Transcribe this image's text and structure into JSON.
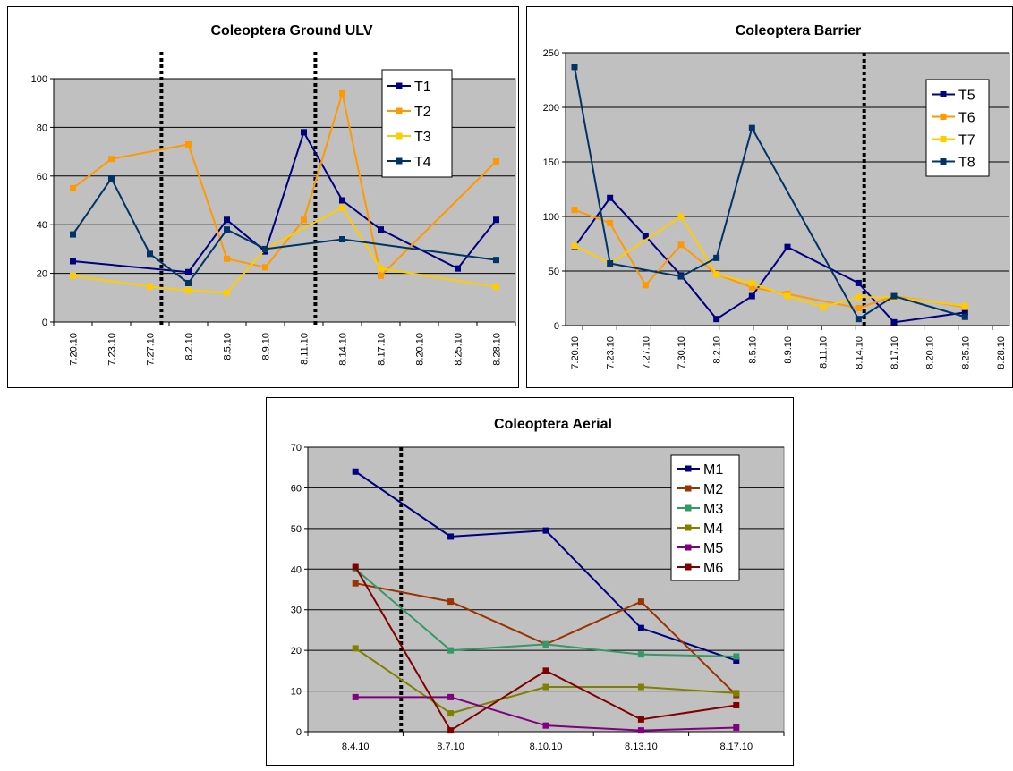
{
  "chart_data": [
    {
      "type": "line",
      "title": "Coleoptera Ground ULV",
      "ylim": [
        0,
        100
      ],
      "yticks": [
        0,
        20,
        40,
        60,
        80,
        100
      ],
      "xlim": [
        0,
        12
      ],
      "categories": [
        "7.20.10",
        "7.23.10",
        "7.27.10",
        "8.2.10",
        "8.5.10",
        "8.9.10",
        "8.11.10",
        "8.14.10",
        "8.17.10",
        "8.20.10",
        "8.25.10",
        "8.28.10"
      ],
      "treatment_lines": [
        2.8,
        6.8
      ],
      "grid": true,
      "legend_position": "top-right",
      "series": [
        {
          "name": "T1",
          "color": "#000080",
          "points": [
            [
              0.5,
              25
            ],
            [
              3.5,
              20.5
            ],
            [
              4.5,
              42
            ],
            [
              5.5,
              29
            ],
            [
              6.5,
              78
            ],
            [
              7.5,
              50
            ],
            [
              8.5,
              38
            ],
            [
              10.5,
              22
            ],
            [
              11.5,
              42
            ]
          ]
        },
        {
          "name": "T2",
          "color": "#FF9900",
          "points": [
            [
              0.5,
              55
            ],
            [
              1.5,
              67
            ],
            [
              3.5,
              73
            ],
            [
              4.5,
              26
            ],
            [
              5.5,
              22.5
            ],
            [
              6.5,
              42
            ],
            [
              7.5,
              94
            ],
            [
              8.5,
              19
            ],
            [
              11.5,
              66
            ]
          ]
        },
        {
          "name": "T3",
          "color": "#FFCC00",
          "points": [
            [
              0.5,
              19
            ],
            [
              2.5,
              14.5
            ],
            [
              3.5,
              13
            ],
            [
              4.5,
              12
            ],
            [
              5.5,
              30
            ],
            [
              7.5,
              47
            ],
            [
              8.5,
              22
            ],
            [
              11.5,
              14.5
            ]
          ]
        },
        {
          "name": "T4",
          "color": "#003366",
          "points": [
            [
              0.5,
              36
            ],
            [
              1.5,
              59
            ],
            [
              2.5,
              28
            ],
            [
              3.5,
              16
            ],
            [
              4.5,
              38
            ],
            [
              5.5,
              30
            ],
            [
              7.5,
              34
            ],
            [
              11.5,
              25.5
            ]
          ]
        }
      ]
    },
    {
      "type": "line",
      "title": "Coleoptera Barrier",
      "ylim": [
        0,
        250
      ],
      "yticks": [
        0,
        50,
        100,
        150,
        200,
        250
      ],
      "xlim": [
        0,
        11
      ],
      "categories": [
        "7.20.10",
        "7.23.10",
        "7.27.10",
        "7.30.10",
        "8.2.10",
        "8.5.10",
        "8.9.10",
        "8.11.10",
        "8.14.10",
        "8.17.10",
        "8.20.10",
        "8.25.10",
        "8.28.10"
      ],
      "treatment_lines": [
        7.4
      ],
      "grid": true,
      "legend_position": "top-right",
      "series": [
        {
          "name": "T5",
          "color": "#000080",
          "points": [
            [
              0,
              72
            ],
            [
              1,
              117
            ],
            [
              2,
              82
            ],
            [
              3,
              46
            ],
            [
              4,
              6
            ],
            [
              5,
              27
            ],
            [
              6,
              72
            ],
            [
              8,
              39
            ],
            [
              9,
              3
            ],
            [
              11,
              12
            ]
          ]
        },
        {
          "name": "T6",
          "color": "#FF9900",
          "points": [
            [
              0,
              106
            ],
            [
              1,
              94
            ],
            [
              2,
              37
            ],
            [
              3,
              74
            ],
            [
              4,
              47
            ],
            [
              5,
              35
            ],
            [
              6,
              29
            ],
            [
              8,
              16
            ],
            [
              9,
              27
            ],
            [
              11,
              17
            ]
          ]
        },
        {
          "name": "T7",
          "color": "#FFCC00",
          "points": [
            [
              0,
              73
            ],
            [
              1,
              57
            ],
            [
              3,
              100
            ],
            [
              4,
              47
            ],
            [
              5,
              39
            ],
            [
              6,
              27
            ],
            [
              7,
              17
            ],
            [
              8,
              26
            ],
            [
              9,
              26
            ],
            [
              11,
              18
            ]
          ]
        },
        {
          "name": "T8",
          "color": "#003366",
          "points": [
            [
              0,
              237
            ],
            [
              1,
              57
            ],
            [
              3,
              45
            ],
            [
              4,
              62
            ],
            [
              5,
              181
            ],
            [
              8,
              6
            ],
            [
              9,
              27
            ],
            [
              11,
              8
            ]
          ]
        }
      ]
    },
    {
      "type": "line",
      "title": "Coleoptera Aerial",
      "ylim": [
        0,
        70
      ],
      "yticks": [
        0,
        10,
        20,
        30,
        40,
        50,
        60,
        70
      ],
      "xlim": [
        0,
        5
      ],
      "categories": [
        "8.4.10",
        "8.7.10",
        "8.10.10",
        "8.13.10",
        "8.17.10"
      ],
      "treatment_lines": [
        0.98
      ],
      "grid": true,
      "legend_position": "top-right",
      "series": [
        {
          "name": "M1",
          "color": "#000080",
          "points": [
            [
              0.5,
              64
            ],
            [
              1.5,
              48
            ],
            [
              2.5,
              49.5
            ],
            [
              3.5,
              25.5
            ],
            [
              4.5,
              17.5
            ]
          ]
        },
        {
          "name": "M2",
          "color": "#993300",
          "points": [
            [
              0.5,
              36.5
            ],
            [
              1.5,
              32
            ],
            [
              2.5,
              21.5
            ],
            [
              3.5,
              32
            ],
            [
              4.5,
              9
            ]
          ]
        },
        {
          "name": "M3",
          "color": "#339966",
          "points": [
            [
              0.5,
              40
            ],
            [
              1.5,
              20
            ],
            [
              2.5,
              21.5
            ],
            [
              3.5,
              19
            ],
            [
              4.5,
              18.5
            ]
          ]
        },
        {
          "name": "M4",
          "color": "#808000",
          "points": [
            [
              0.5,
              20.5
            ],
            [
              1.5,
              4.5
            ],
            [
              2.5,
              11
            ],
            [
              3.5,
              11
            ],
            [
              4.5,
              9.5
            ]
          ]
        },
        {
          "name": "M5",
          "color": "#800080",
          "points": [
            [
              0.5,
              8.5
            ],
            [
              1.5,
              8.5
            ],
            [
              2.5,
              1.5
            ],
            [
              3.5,
              0.3
            ],
            [
              4.5,
              1
            ]
          ]
        },
        {
          "name": "M6",
          "color": "#800000",
          "points": [
            [
              0.5,
              40.5
            ],
            [
              1.5,
              0.3
            ],
            [
              2.5,
              15
            ],
            [
              3.5,
              3
            ],
            [
              4.5,
              6.5
            ]
          ]
        }
      ]
    }
  ],
  "colors": {
    "plot_area": "#C0C0C0",
    "gridline": "#000000",
    "frame": "#000000",
    "background": "#FFFFFF"
  }
}
